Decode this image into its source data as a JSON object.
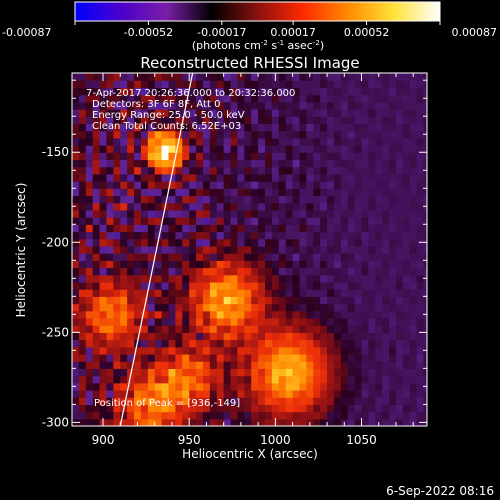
{
  "chart_data": {
    "type": "heatmap",
    "title": "Reconstructed RHESSI Image",
    "xlabel": "Heliocentric X (arcsec)",
    "ylabel": "Heliocentric Y (arcsec)",
    "xlim": [
      882,
      1088
    ],
    "ylim": [
      -302,
      -106
    ],
    "x_ticks": [
      "900",
      "950",
      "1000",
      "1050"
    ],
    "x_tick_values": [
      900,
      950,
      1000,
      1050
    ],
    "y_ticks": [
      "-150",
      "-200",
      "-250",
      "-300"
    ],
    "y_tick_values": [
      -150,
      -200,
      -250,
      -300
    ],
    "colorbar": {
      "ticks": [
        "-0.00087",
        "-0.00052",
        "-0.00017",
        "0.00017",
        "0.00052",
        "0.00087"
      ],
      "units_text": "(photons cm",
      "units_exp1": "-2",
      "units_mid": " s",
      "units_exp2": "-1",
      "units_mid2": " asec",
      "units_exp3": "-2",
      "units_end": ")",
      "colors": [
        "#0000ff",
        "#4b00cc",
        "#7a1fa8",
        "#000000",
        "#8a1010",
        "#ff2a00",
        "#ff8c00",
        "#ffe23a",
        "#ffffff"
      ],
      "min": -0.00087,
      "max": 0.00087
    },
    "annotations": [
      "7-Apr-2017 20:26:36.000 to 20:32:36.000",
      "Detectors: 3F 6F 8F, Att 0",
      "Energy Range: 25.0 - 50.0 keV",
      "Clean    Total Counts: 6.52E+03"
    ],
    "peak_text": "Position of Peak = [936,-149]",
    "peak": [
      936,
      -149
    ],
    "limb_line": [
      [
        910,
        -302
      ],
      [
        952,
        -106
      ]
    ],
    "emission_sources": [
      {
        "x": 936,
        "y": -149,
        "amp": 1.0,
        "sigma": 7
      },
      {
        "x": 972,
        "y": -232,
        "amp": 0.65,
        "sigma": 14
      },
      {
        "x": 1008,
        "y": -272,
        "amp": 0.7,
        "sigma": 16
      },
      {
        "x": 905,
        "y": -240,
        "amp": 0.5,
        "sigma": 12
      },
      {
        "x": 928,
        "y": -290,
        "amp": 0.5,
        "sigma": 13
      },
      {
        "x": 950,
        "y": -275,
        "amp": 0.45,
        "sigma": 12
      }
    ]
  },
  "footer": {
    "date": "6-Sep-2022 08:16"
  }
}
